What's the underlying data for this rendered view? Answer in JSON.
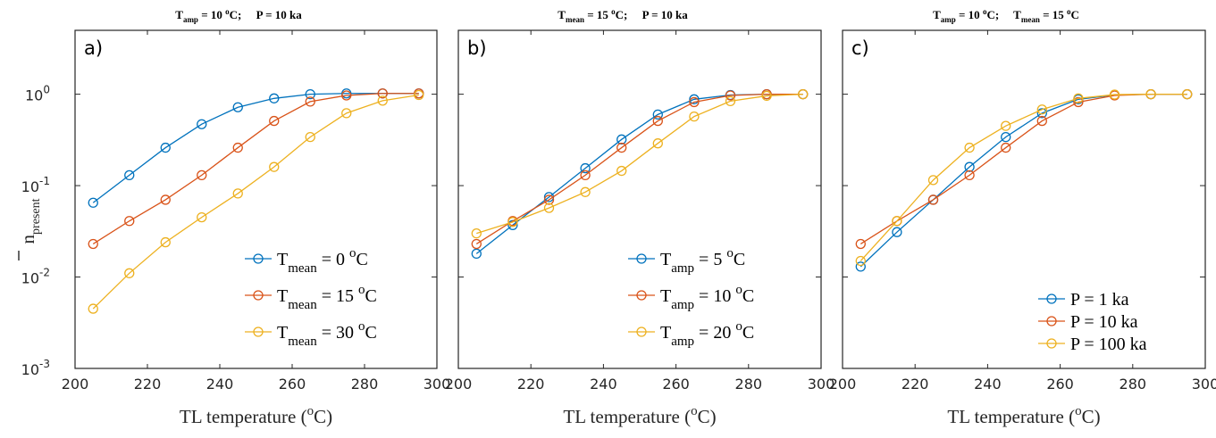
{
  "chart_data": [
    {
      "type": "line",
      "panel_label": "a)",
      "title": {
        "pre": "T",
        "sub": "amp",
        "mid": " = 10 ",
        "sup": "o",
        "post": "C;     P = 10 ka"
      },
      "xlabel": {
        "pre": "TL temperature (",
        "sup": "o",
        "post": "C)"
      },
      "ylabel": {
        "main": "n",
        "sub": "present"
      },
      "xlim": [
        200,
        300
      ],
      "ylim": [
        0.001,
        5
      ],
      "yscale": "log",
      "grid": false,
      "legend_position": "bottom-right",
      "x_ticks": [
        "200",
        "220",
        "240",
        "260",
        "280",
        "300"
      ],
      "x": [
        205,
        215,
        225,
        235,
        245,
        255,
        265,
        275,
        285,
        295
      ],
      "series": [
        {
          "color": "#0072BD",
          "legend": {
            "pre": "T",
            "sub": "mean",
            "mid": " = 0 ",
            "sup": "o",
            "post": "C"
          },
          "values": [
            0.065,
            0.13,
            0.26,
            0.47,
            0.72,
            0.9,
            1.0,
            1.02,
            1.02,
            1.02
          ]
        },
        {
          "color": "#D95319",
          "legend": {
            "pre": "T",
            "sub": "mean",
            "mid": " = 15 ",
            "sup": "o",
            "post": "C"
          },
          "values": [
            0.023,
            0.041,
            0.07,
            0.13,
            0.26,
            0.51,
            0.83,
            0.97,
            1.02,
            1.02
          ]
        },
        {
          "color": "#EDB120",
          "legend": {
            "pre": "T",
            "sub": "mean",
            "mid": " = 30 ",
            "sup": "o",
            "post": "C"
          },
          "values": [
            0.0045,
            0.011,
            0.024,
            0.045,
            0.082,
            0.16,
            0.34,
            0.62,
            0.85,
            0.98
          ]
        }
      ]
    },
    {
      "type": "line",
      "panel_label": "b)",
      "title": {
        "pre": "T",
        "sub": "mean",
        "mid": " = 15 ",
        "sup": "o",
        "post": "C;     P = 10 ka"
      },
      "xlabel": {
        "pre": "TL temperature (",
        "sup": "o",
        "post": "C)"
      },
      "xlim": [
        200,
        300
      ],
      "ylim": [
        0.001,
        5
      ],
      "yscale": "log",
      "grid": false,
      "legend_position": "bottom-right",
      "x_ticks": [
        "200",
        "220",
        "240",
        "260",
        "280",
        "300"
      ],
      "x": [
        205,
        215,
        225,
        235,
        245,
        255,
        265,
        275,
        285,
        295
      ],
      "series": [
        {
          "color": "#0072BD",
          "legend": {
            "pre": "T",
            "sub": "amp",
            "mid": " = 5 ",
            "sup": "o",
            "post": "C"
          },
          "values": [
            0.018,
            0.037,
            0.075,
            0.155,
            0.32,
            0.6,
            0.88,
            0.98,
            1.0,
            1.0
          ]
        },
        {
          "color": "#D95319",
          "legend": {
            "pre": "T",
            "sub": "amp",
            "mid": " = 10 ",
            "sup": "o",
            "post": "C"
          },
          "values": [
            0.023,
            0.041,
            0.07,
            0.13,
            0.26,
            0.51,
            0.82,
            0.97,
            1.0,
            1.0
          ]
        },
        {
          "color": "#EDB120",
          "legend": {
            "pre": "T",
            "sub": "amp",
            "mid": " = 20 ",
            "sup": "o",
            "post": "C"
          },
          "values": [
            0.03,
            0.04,
            0.057,
            0.085,
            0.145,
            0.29,
            0.57,
            0.84,
            0.96,
            1.0
          ]
        }
      ]
    },
    {
      "type": "line",
      "panel_label": "c)",
      "title": {
        "pre": "T",
        "sub": "amp",
        "mid": " = 10 ",
        "sup": "o",
        "post": "C;     ",
        "pre2": "T",
        "sub2": "mean",
        "mid2": " = 15 ",
        "sup2": "o",
        "post2": "C"
      },
      "xlabel": {
        "pre": "TL temperature (",
        "sup": "o",
        "post": "C)"
      },
      "xlim": [
        200,
        300
      ],
      "ylim": [
        0.001,
        5
      ],
      "yscale": "log",
      "grid": false,
      "legend_position": "bottom-right",
      "x_ticks": [
        "200",
        "220",
        "240",
        "260",
        "280",
        "300"
      ],
      "x": [
        205,
        215,
        225,
        235,
        245,
        255,
        265,
        275,
        285,
        295
      ],
      "series": [
        {
          "color": "#0072BD",
          "legend": {
            "text": "P = 1 ka"
          },
          "values": [
            0.013,
            0.031,
            0.07,
            0.16,
            0.34,
            0.62,
            0.88,
            0.98,
            1.0,
            1.0
          ]
        },
        {
          "color": "#D95319",
          "legend": {
            "text": "P = 10 ka"
          },
          "values": [
            0.023,
            0.041,
            0.07,
            0.13,
            0.26,
            0.51,
            0.82,
            0.97,
            1.0,
            1.0
          ]
        },
        {
          "color": "#EDB120",
          "legend": {
            "text": "P = 100 ka"
          },
          "values": [
            0.015,
            0.041,
            0.115,
            0.26,
            0.45,
            0.68,
            0.9,
            0.99,
            1.0,
            1.0
          ]
        }
      ]
    }
  ],
  "y_ticks": [
    {
      "base": "10",
      "exp": "-3",
      "value": 0.001
    },
    {
      "base": "10",
      "exp": "-2",
      "value": 0.01
    },
    {
      "base": "10",
      "exp": "-1",
      "value": 0.1
    },
    {
      "base": "10",
      "exp": "0",
      "value": 1
    }
  ]
}
